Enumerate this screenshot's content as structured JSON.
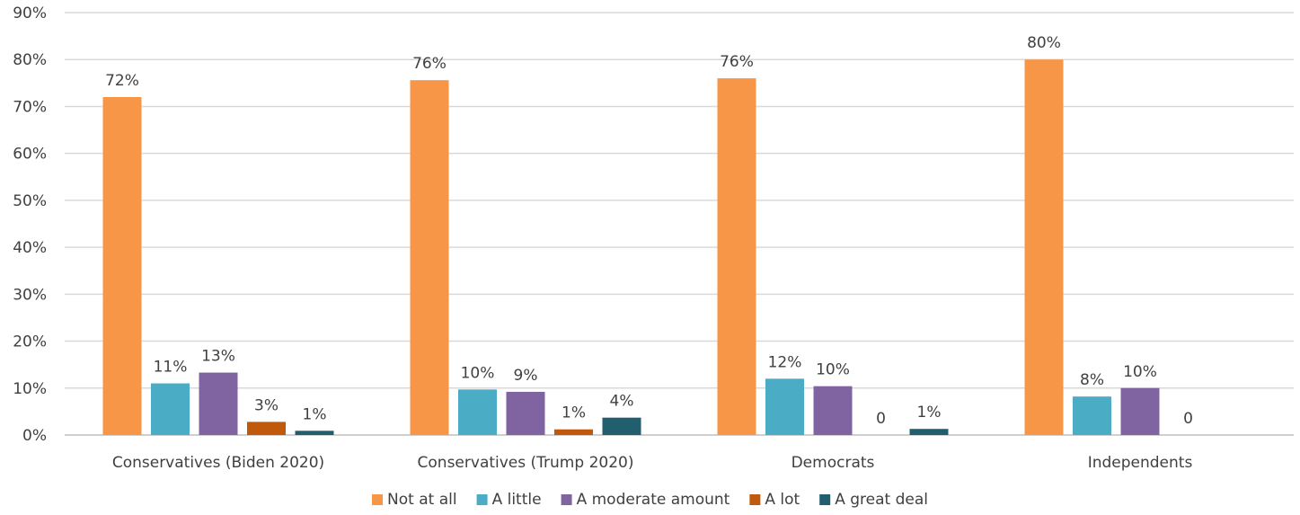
{
  "chart_data": {
    "type": "bar",
    "title": "",
    "xlabel": "",
    "ylabel": "",
    "ylim": [
      0,
      90
    ],
    "y_ticks": [
      "0%",
      "10%",
      "20%",
      "30%",
      "40%",
      "50%",
      "60%",
      "70%",
      "80%",
      "90%"
    ],
    "grid": true,
    "legend_position": "bottom",
    "categories": [
      "Conservatives (Biden 2020)",
      "Conservatives (Trump 2020)",
      "Democrats",
      "Independents"
    ],
    "series": [
      {
        "name": "Not at all",
        "color": "#f79646",
        "values": [
          72,
          75.6,
          76,
          80
        ],
        "labels": [
          "72%",
          "76%",
          "76%",
          "80%"
        ]
      },
      {
        "name": "A little",
        "color": "#4bacc6",
        "values": [
          11,
          9.7,
          12,
          8.2
        ],
        "labels": [
          "11%",
          "10%",
          "12%",
          "8%"
        ]
      },
      {
        "name": "A moderate amount",
        "color": "#8064a2",
        "values": [
          13.3,
          9.2,
          10.4,
          10
        ],
        "labels": [
          "13%",
          "9%",
          "10%",
          "10%"
        ]
      },
      {
        "name": "A lot",
        "color": "#c0590c",
        "values": [
          2.8,
          1.2,
          0,
          null
        ],
        "labels": [
          "3%",
          "1%",
          "0",
          "0"
        ]
      },
      {
        "name": "A great deal",
        "color": "#215f6e",
        "values": [
          0.9,
          3.7,
          1.3,
          null
        ],
        "labels": [
          "1%",
          "4%",
          "1%",
          null
        ]
      }
    ]
  }
}
